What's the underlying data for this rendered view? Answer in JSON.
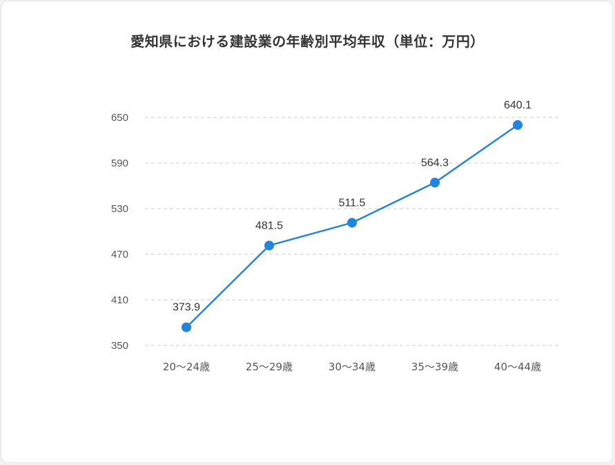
{
  "chart_data": {
    "type": "line",
    "title": "愛知県における建設業の年齢別平均年収（単位：万円）",
    "categories": [
      "20〜24歳",
      "25〜29歳",
      "30〜34歳",
      "35〜39歳",
      "40〜44歳"
    ],
    "series": [
      {
        "values": [
          373.9,
          481.5,
          511.5,
          564.3,
          640.1
        ],
        "data_labels": [
          "373.9",
          "481.5",
          "511.5",
          "564.3",
          "640.1"
        ],
        "color": "#2185de"
      }
    ],
    "y_ticks": [
      "650",
      "590",
      "530",
      "470",
      "410",
      "350"
    ],
    "ylim": [
      350,
      650
    ],
    "grid": true,
    "grid_style": "dashed-horizontal",
    "legend": "none"
  }
}
